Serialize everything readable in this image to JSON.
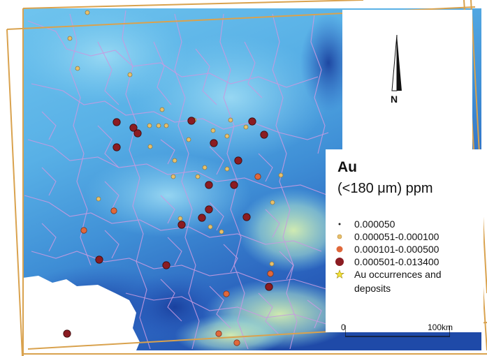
{
  "legend": {
    "title": "Au",
    "subtitle": "(<180 μm) ppm",
    "items": [
      {
        "label": "0.000050",
        "symbol": "tiny-dot",
        "color": "#222222"
      },
      {
        "label": "0.000051-0.000100",
        "symbol": "small-dot",
        "color": "#e8c06a"
      },
      {
        "label": "0.000101-0.000500",
        "symbol": "medium-dot",
        "color": "#e0683a"
      },
      {
        "label": "0.000501-0.013400",
        "symbol": "large-dot",
        "color": "#8b1c22"
      },
      {
        "label": "Au occurrences and deposits",
        "symbol": "star-icon",
        "color": "#f4e33a"
      }
    ]
  },
  "north_label": "N",
  "scale": {
    "zero": "0",
    "max": "100km"
  },
  "colors": {
    "frame": "#d9a24e",
    "boundaries": "#c79ae0",
    "terrain_low": "#1d4fb0",
    "terrain_mid": "#58b6ea",
    "terrain_high": "#bfe8c6",
    "sea": "#ffffff"
  },
  "samples": {
    "large": [
      [
        167,
        175
      ],
      [
        191,
        183
      ],
      [
        197,
        191
      ],
      [
        167,
        211
      ],
      [
        274,
        173
      ],
      [
        306,
        205
      ],
      [
        361,
        174
      ],
      [
        378,
        193
      ],
      [
        341,
        230
      ],
      [
        299,
        265
      ],
      [
        335,
        265
      ],
      [
        260,
        322
      ],
      [
        289,
        312
      ],
      [
        299,
        300
      ],
      [
        353,
        311
      ],
      [
        238,
        380
      ],
      [
        142,
        372
      ],
      [
        385,
        411
      ],
      [
        96,
        478
      ]
    ],
    "medium": [
      [
        120,
        330
      ],
      [
        369,
        253
      ],
      [
        324,
        421
      ],
      [
        313,
        478
      ],
      [
        339,
        491
      ],
      [
        163,
        302
      ],
      [
        387,
        392
      ]
    ],
    "small": [
      [
        125,
        18
      ],
      [
        111,
        98
      ],
      [
        232,
        157
      ],
      [
        227,
        180
      ],
      [
        214,
        180
      ],
      [
        238,
        180
      ],
      [
        278,
        172
      ],
      [
        293,
        240
      ],
      [
        330,
        172
      ],
      [
        402,
        251
      ],
      [
        352,
        182
      ],
      [
        248,
        253
      ],
      [
        258,
        313
      ],
      [
        325,
        242
      ],
      [
        317,
        332
      ],
      [
        141,
        285
      ],
      [
        186,
        107
      ],
      [
        100,
        55
      ],
      [
        390,
        290
      ],
      [
        270,
        200
      ],
      [
        301,
        325
      ],
      [
        305,
        187
      ],
      [
        283,
        253
      ],
      [
        325,
        195
      ],
      [
        250,
        230
      ],
      [
        215,
        210
      ],
      [
        389,
        378
      ]
    ]
  }
}
